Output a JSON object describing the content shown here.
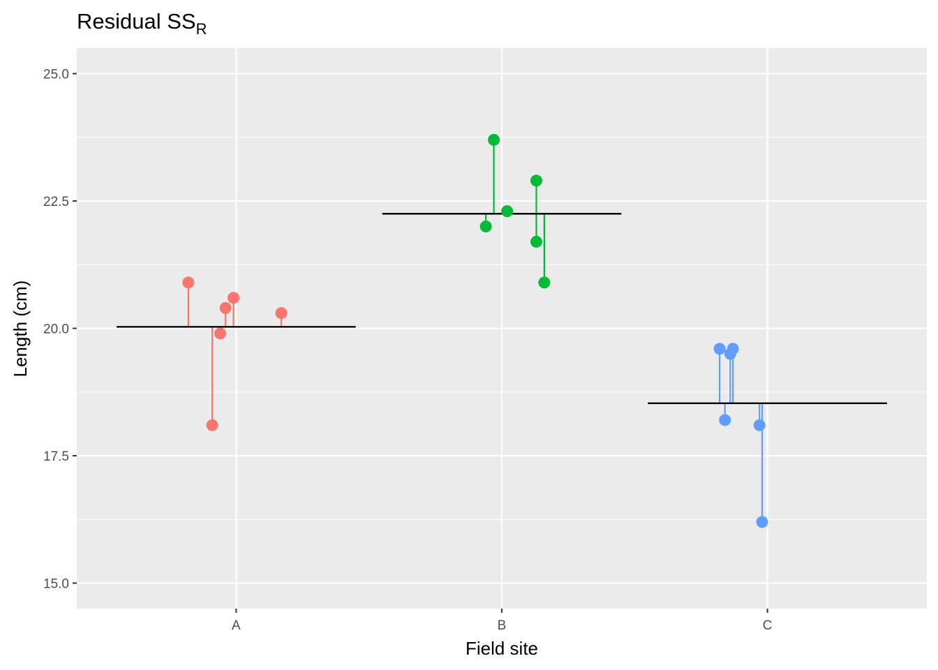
{
  "chart_data": {
    "type": "scatter",
    "title": "Residual SS",
    "title_subscript": "R",
    "xlabel": "Field site",
    "ylabel": "Length (cm)",
    "ylim": [
      14.5,
      25.5
    ],
    "y_ticks": [
      "15.0",
      "17.5",
      "20.0",
      "22.5",
      "25.0"
    ],
    "categories": [
      "A",
      "B",
      "C"
    ],
    "grid": true,
    "legend": "none",
    "series": [
      {
        "category": "A",
        "color": "#F8766D",
        "mean": 20.03,
        "points": [
          {
            "x": 0.82,
            "y": 20.9
          },
          {
            "x": 0.91,
            "y": 18.1
          },
          {
            "x": 0.94,
            "y": 19.9
          },
          {
            "x": 0.96,
            "y": 20.4
          },
          {
            "x": 0.99,
            "y": 20.6
          },
          {
            "x": 1.17,
            "y": 20.3
          }
        ]
      },
      {
        "category": "B",
        "color": "#00BA38",
        "mean": 22.25,
        "points": [
          {
            "x": 1.94,
            "y": 22.0
          },
          {
            "x": 1.97,
            "y": 23.7
          },
          {
            "x": 2.02,
            "y": 22.3
          },
          {
            "x": 2.13,
            "y": 22.9
          },
          {
            "x": 2.13,
            "y": 21.7
          },
          {
            "x": 2.16,
            "y": 20.9
          }
        ]
      },
      {
        "category": "C",
        "color": "#619CFF",
        "mean": 18.53,
        "points": [
          {
            "x": 2.82,
            "y": 19.6
          },
          {
            "x": 2.84,
            "y": 18.2
          },
          {
            "x": 2.86,
            "y": 19.5
          },
          {
            "x": 2.87,
            "y": 19.6
          },
          {
            "x": 2.97,
            "y": 18.1
          },
          {
            "x": 2.98,
            "y": 16.2
          }
        ]
      }
    ]
  }
}
